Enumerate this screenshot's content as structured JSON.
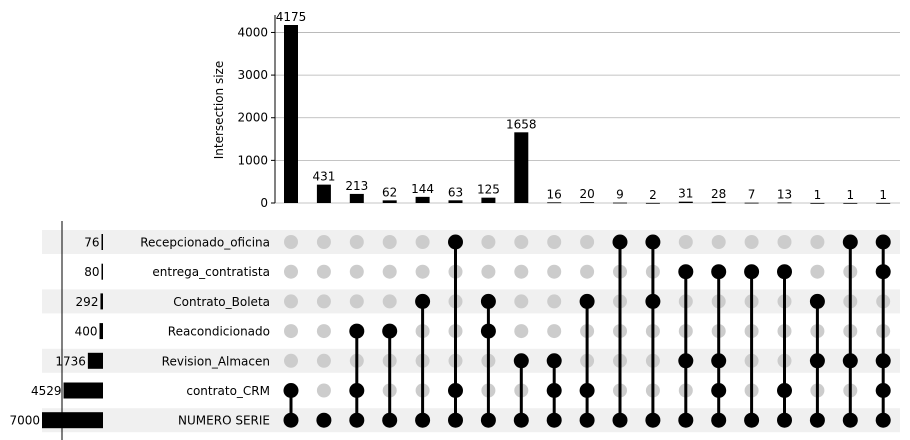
{
  "chart_data": {
    "type": "upset",
    "ylabel": "Intersection size",
    "y_ticks": [
      0,
      1000,
      2000,
      3000,
      4000
    ],
    "ylim": [
      0,
      4175
    ],
    "sets": [
      {
        "name": "Recepcionado_oficina",
        "size": 76
      },
      {
        "name": "entrega_contratista",
        "size": 80
      },
      {
        "name": "Contrato_Boleta",
        "size": 292
      },
      {
        "name": "Reacondicionado",
        "size": 400
      },
      {
        "name": "Revision_Almacen",
        "size": 1736
      },
      {
        "name": "contrato_CRM",
        "size": 4529
      },
      {
        "name": "NUMERO SERIE",
        "size": 7000
      }
    ],
    "set_size_max": 7000,
    "intersections": [
      {
        "value": 4175,
        "members": [
          "contrato_CRM",
          "NUMERO SERIE"
        ]
      },
      {
        "value": 431,
        "members": [
          "NUMERO SERIE"
        ]
      },
      {
        "value": 213,
        "members": [
          "Reacondicionado",
          "contrato_CRM",
          "NUMERO SERIE"
        ]
      },
      {
        "value": 62,
        "members": [
          "Reacondicionado",
          "NUMERO SERIE"
        ]
      },
      {
        "value": 144,
        "members": [
          "Contrato_Boleta",
          "NUMERO SERIE"
        ]
      },
      {
        "value": 63,
        "members": [
          "Recepcionado_oficina",
          "contrato_CRM",
          "NUMERO SERIE"
        ]
      },
      {
        "value": 125,
        "members": [
          "Contrato_Boleta",
          "Reacondicionado",
          "NUMERO SERIE"
        ]
      },
      {
        "value": 1658,
        "members": [
          "Revision_Almacen",
          "NUMERO SERIE"
        ]
      },
      {
        "value": 16,
        "members": [
          "Revision_Almacen",
          "contrato_CRM",
          "NUMERO SERIE"
        ]
      },
      {
        "value": 20,
        "members": [
          "Contrato_Boleta",
          "contrato_CRM",
          "NUMERO SERIE"
        ]
      },
      {
        "value": 9,
        "members": [
          "Recepcionado_oficina",
          "NUMERO SERIE"
        ]
      },
      {
        "value": 2,
        "members": [
          "Recepcionado_oficina",
          "Contrato_Boleta",
          "NUMERO SERIE"
        ]
      },
      {
        "value": 31,
        "members": [
          "entrega_contratista",
          "Revision_Almacen",
          "NUMERO SERIE"
        ]
      },
      {
        "value": 28,
        "members": [
          "entrega_contratista",
          "Revision_Almacen",
          "contrato_CRM",
          "NUMERO SERIE"
        ]
      },
      {
        "value": 7,
        "members": [
          "entrega_contratista",
          "NUMERO SERIE"
        ]
      },
      {
        "value": 13,
        "members": [
          "entrega_contratista",
          "contrato_CRM",
          "NUMERO SERIE"
        ]
      },
      {
        "value": 1,
        "members": [
          "Contrato_Boleta",
          "Revision_Almacen",
          "NUMERO SERIE"
        ]
      },
      {
        "value": 1,
        "members": [
          "Recepcionado_oficina",
          "Revision_Almacen",
          "NUMERO SERIE"
        ]
      },
      {
        "value": 1,
        "members": [
          "Recepcionado_oficina",
          "entrega_contratista",
          "Revision_Almacen",
          "contrato_CRM",
          "NUMERO SERIE"
        ]
      }
    ],
    "grid": true,
    "colors": {
      "bar": "#000000",
      "dot_active": "#000000",
      "dot_inactive": "#cccccc",
      "row_shade": "#f0f0f0",
      "grid": "#b0b0b0"
    }
  }
}
